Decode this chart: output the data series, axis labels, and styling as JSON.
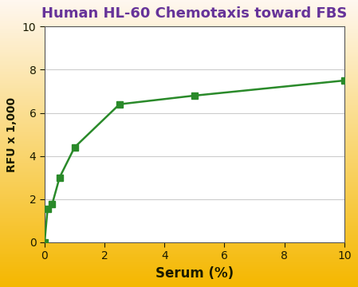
{
  "title": "Human HL-60 Chemotaxis toward FBS",
  "title_color": "#663399",
  "xlabel": "Serum (%)",
  "ylabel": "RFU x 1,000",
  "xlabel_fontsize": 12,
  "ylabel_fontsize": 10,
  "title_fontsize": 13,
  "x_data": [
    0,
    0.1,
    0.25,
    0.5,
    1.0,
    2.5,
    5.0,
    10.0
  ],
  "y_data": [
    0,
    1.55,
    1.75,
    3.0,
    4.4,
    6.4,
    6.8,
    7.5
  ],
  "xlim": [
    0,
    10
  ],
  "ylim": [
    0,
    10
  ],
  "xticks": [
    0,
    2,
    4,
    6,
    8,
    10
  ],
  "yticks": [
    0,
    2,
    4,
    6,
    8,
    10
  ],
  "line_color": "#2a8a2a",
  "marker_color": "#2a8a2a",
  "marker": "s",
  "marker_size": 6,
  "line_width": 1.8,
  "bg_color_top": "#fff8f0",
  "bg_color_bottom": "#f5b800",
  "plot_bg": "#ffffff",
  "grid_color": "#cccccc",
  "tick_label_fontsize": 10,
  "label_color": "#1a1a00",
  "tick_color": "#1a1a00"
}
